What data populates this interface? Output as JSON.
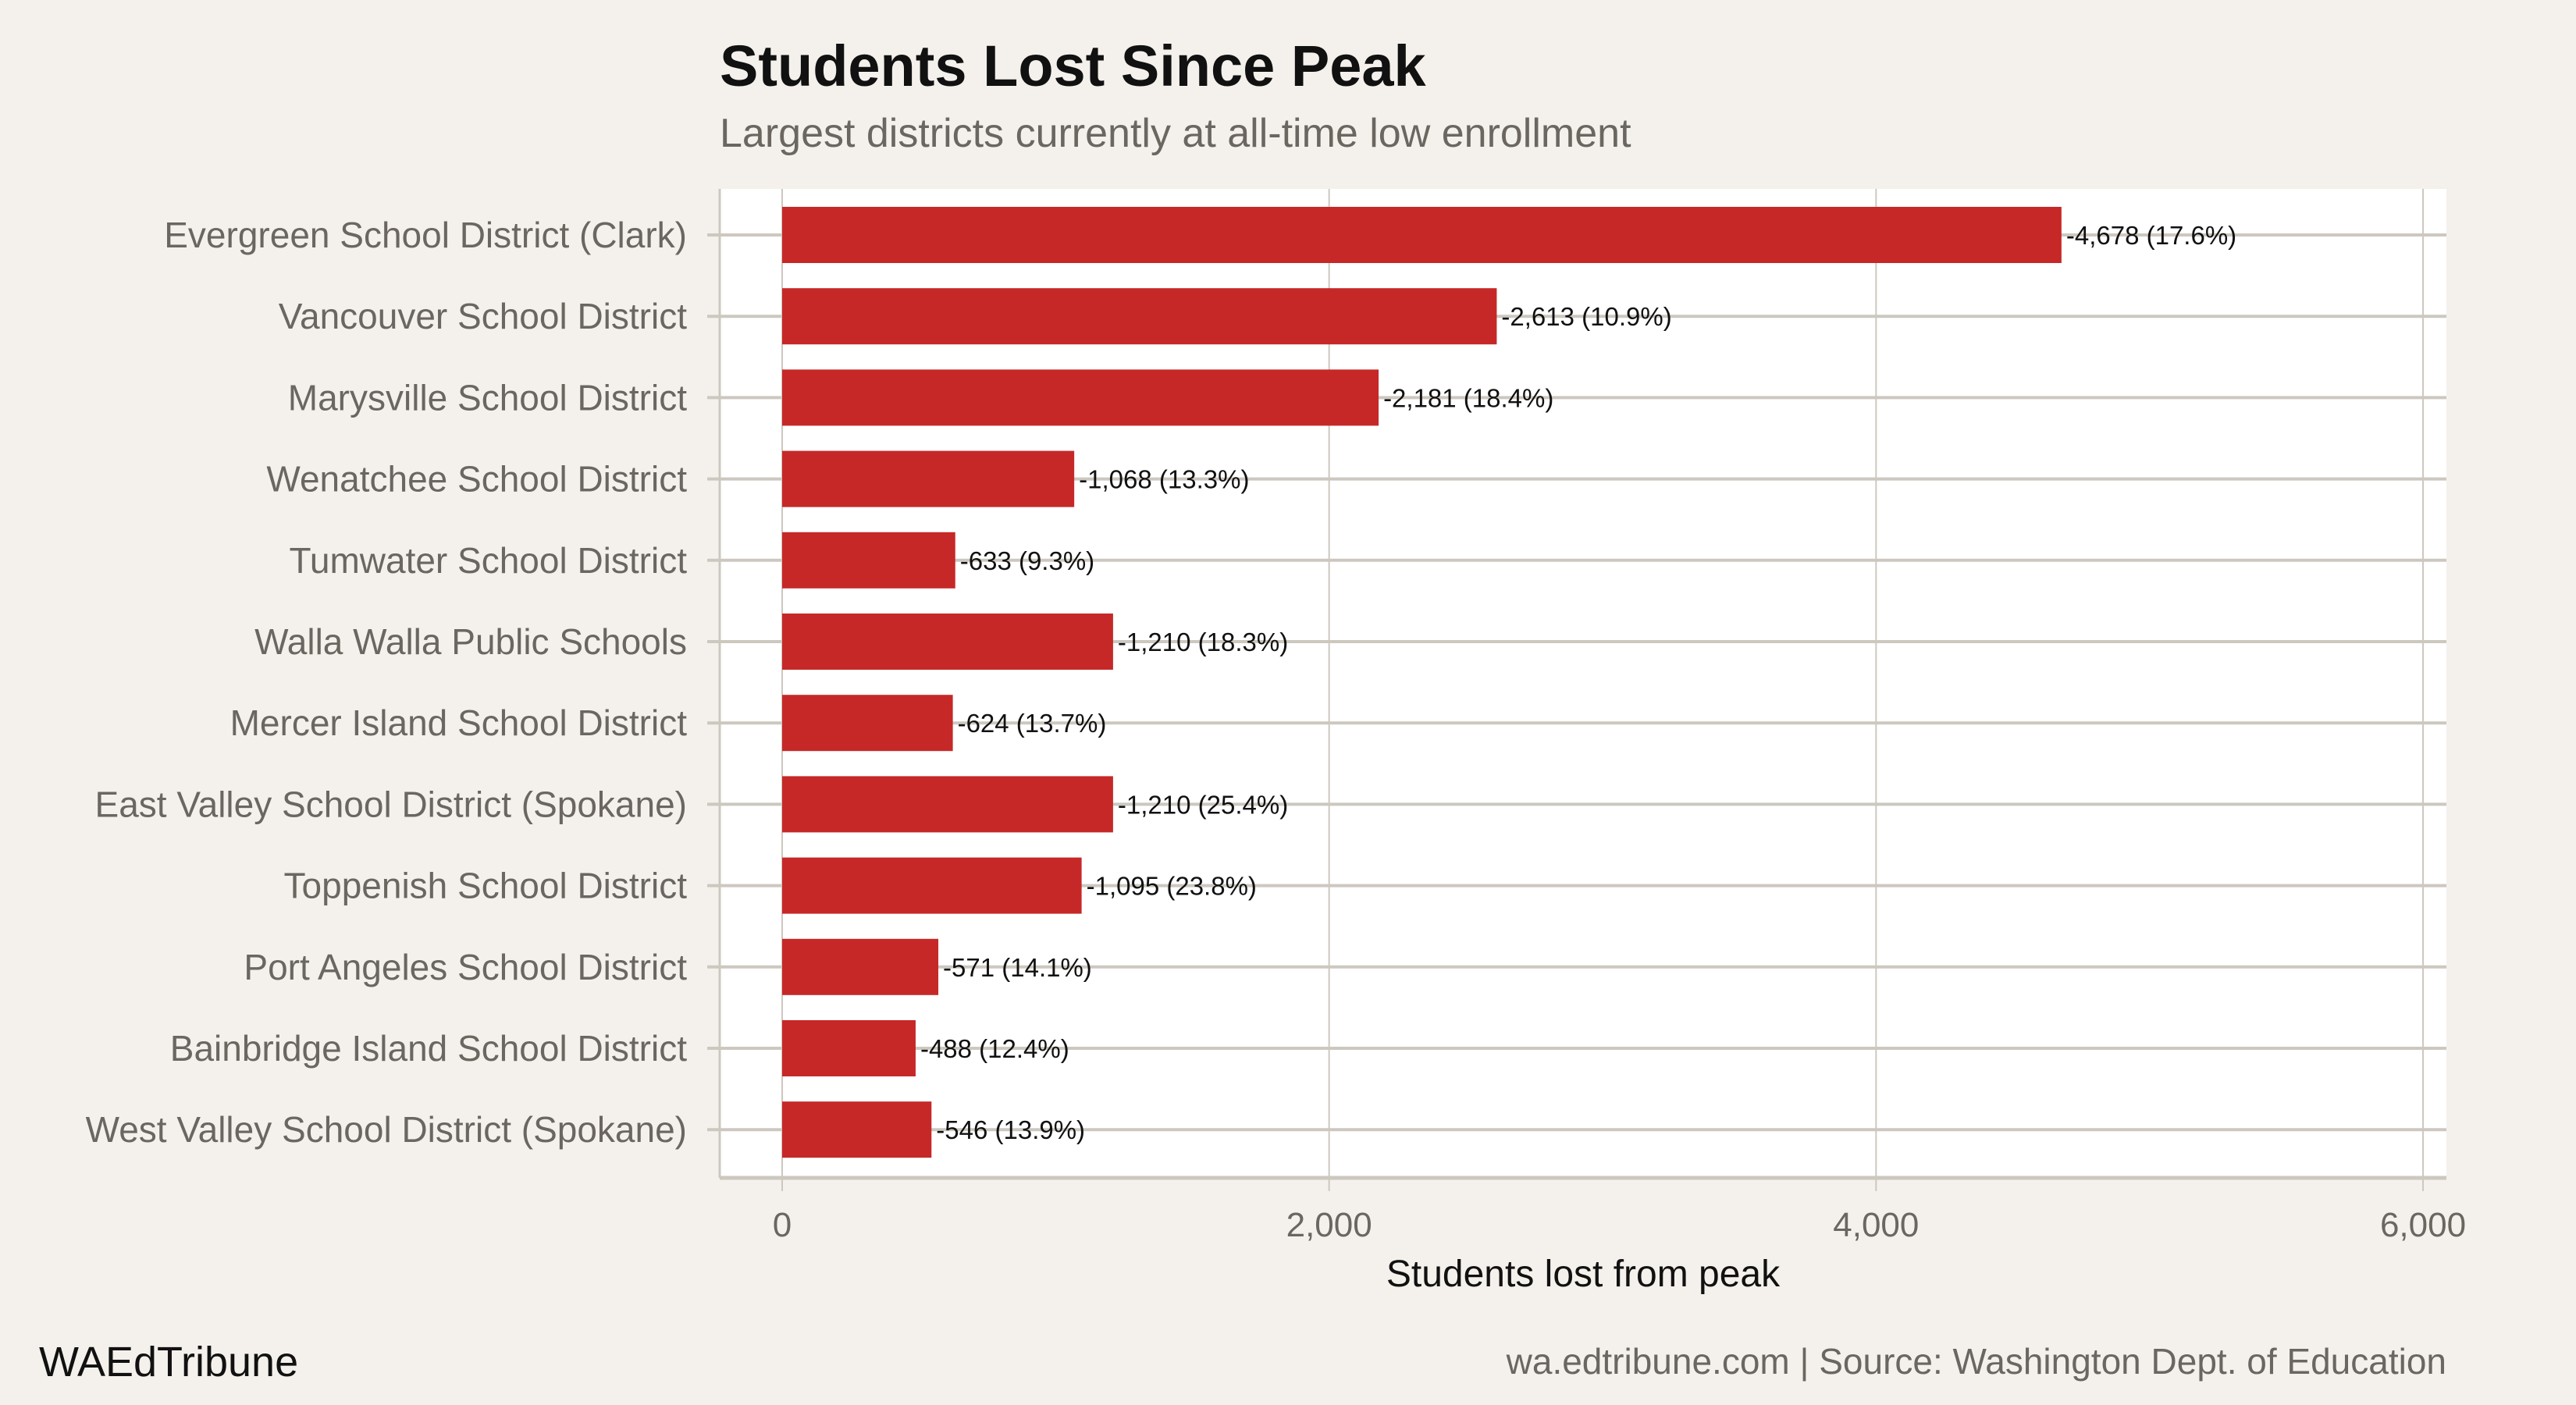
{
  "chart_data": {
    "type": "bar",
    "orientation": "horizontal",
    "title": "Students Lost Since Peak",
    "subtitle": "Largest districts currently at all-time low enrollment",
    "xlabel": "Students lost from peak",
    "ylabel": "",
    "xlim": [
      0,
      6000
    ],
    "xticks": [
      0,
      2000,
      4000,
      6000
    ],
    "xtick_labels": [
      "0",
      "2,000",
      "4,000",
      "6,000"
    ],
    "grid": true,
    "categories": [
      "Evergreen School District (Clark)",
      "Vancouver School District",
      "Marysville School District",
      "Wenatchee School District",
      "Tumwater School District",
      "Walla Walla Public Schools",
      "Mercer Island School District",
      "East Valley School District (Spokane)",
      "Toppenish School District",
      "Port Angeles School District",
      "Bainbridge Island School District",
      "West Valley School District (Spokane)"
    ],
    "values": [
      4678,
      2613,
      2181,
      1068,
      633,
      1210,
      624,
      1210,
      1095,
      571,
      488,
      546
    ],
    "data_labels": [
      "-4,678 (17.6%)",
      "-2,613 (10.9%)",
      "-2,181 (18.4%)",
      "-1,068 (13.3%)",
      "-633 (9.3%)",
      "-1,210 (18.3%)",
      "-624 (13.7%)",
      "-1,210 (25.4%)",
      "-1,095 (23.8%)",
      "-571 (14.1%)",
      "-488 (12.4%)",
      "-546 (13.9%)"
    ],
    "bar_color": "#c62828"
  },
  "footer": {
    "brand": "WAEdTribune",
    "source": "wa.edtribune.com | Source: Washington Dept. of Education"
  },
  "colors": {
    "background": "#f4f1ec",
    "panel": "#ffffff",
    "grid": "#cdc8bf"
  }
}
